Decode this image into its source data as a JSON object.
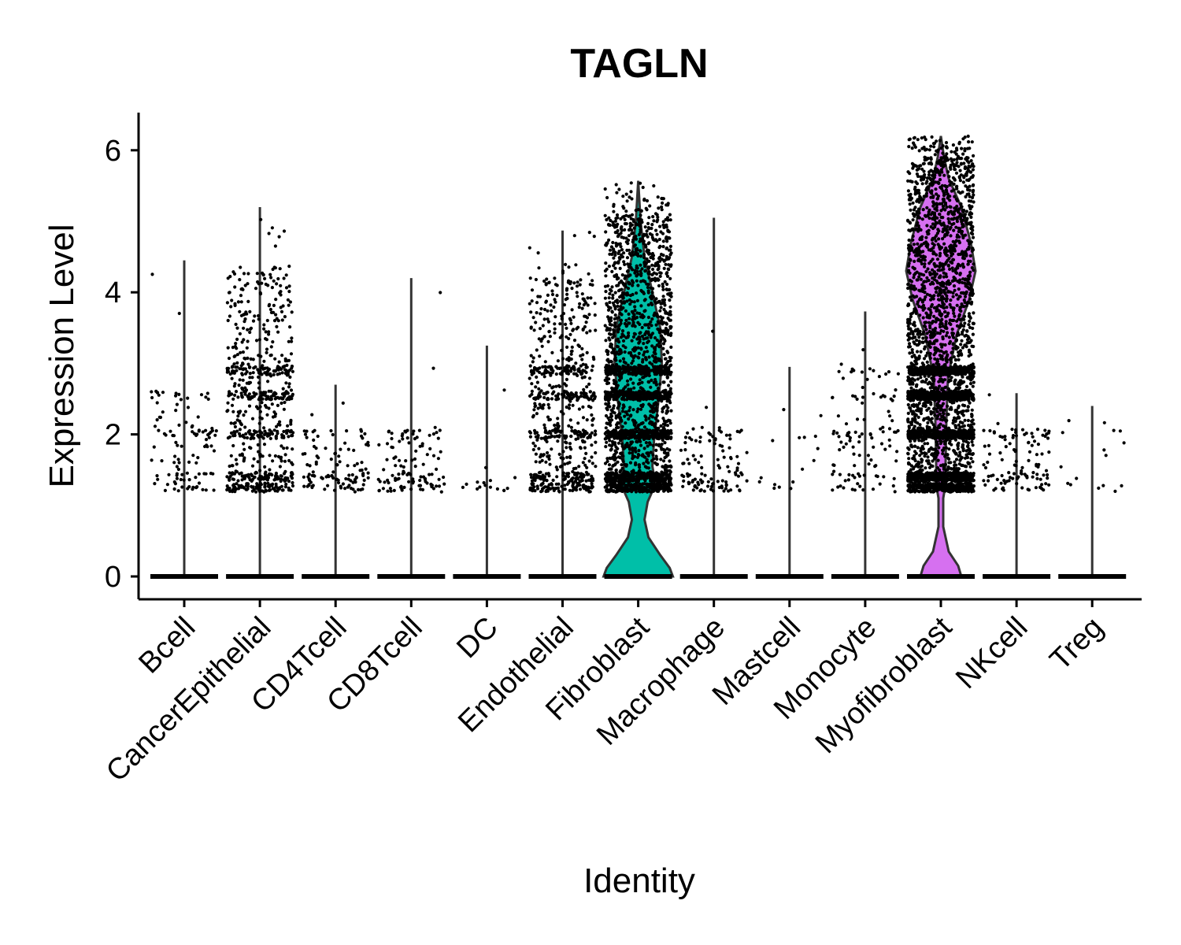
{
  "chart_data": {
    "type": "violin",
    "title": "TAGLN",
    "xlabel": "Identity",
    "ylabel": "Expression Level",
    "ylim": [
      -0.3,
      6.5
    ],
    "yticks": [
      0,
      2,
      4,
      6
    ],
    "grid": false,
    "legend": "none",
    "categories": [
      "Bcell",
      "CancerEpithelial",
      "CD4Tcell",
      "CD8Tcell",
      "DC",
      "Endothelial",
      "Fibroblast",
      "Macrophage",
      "Mastcell",
      "Monocyte",
      "Myofibroblast",
      "NKcell",
      "Treg"
    ],
    "series": [
      {
        "values": [
          {
            "min": 0,
            "max": 4.45,
            "bulk_low": 1.2,
            "bulk_high": 2.6,
            "point_density": "sparse"
          },
          {
            "min": 0,
            "max": 5.2,
            "bulk_low": 1.2,
            "bulk_high": 4.3,
            "point_density": "medium"
          },
          {
            "min": 0,
            "max": 2.7,
            "bulk_low": 1.2,
            "bulk_high": 2.1,
            "point_density": "sparse"
          },
          {
            "min": 0,
            "max": 4.2,
            "bulk_low": 1.2,
            "bulk_high": 2.1,
            "point_density": "sparse"
          },
          {
            "min": 0,
            "max": 3.25,
            "bulk_low": 1.2,
            "bulk_high": 1.4,
            "point_density": "very-sparse"
          },
          {
            "min": 0,
            "max": 4.87,
            "bulk_low": 1.2,
            "bulk_high": 4.2,
            "point_density": "medium"
          },
          {
            "min": 0,
            "max": 5.57,
            "bulk_low": 1.2,
            "bulk_high": 5.1,
            "point_density": "dense",
            "fill": "#00BFA8"
          },
          {
            "min": 0,
            "max": 5.05,
            "bulk_low": 1.2,
            "bulk_high": 2.1,
            "point_density": "sparse"
          },
          {
            "min": 0,
            "max": 2.95,
            "bulk_low": 1.2,
            "bulk_high": 2.0,
            "point_density": "very-sparse"
          },
          {
            "min": 0,
            "max": 3.73,
            "bulk_low": 1.4,
            "bulk_high": 2.9,
            "point_density": "sparse"
          },
          {
            "min": 0,
            "max": 6.2,
            "bulk_low": 1.2,
            "bulk_high": 5.9,
            "point_density": "very-dense",
            "fill": "#D670F0"
          },
          {
            "min": 0,
            "max": 2.58,
            "bulk_low": 1.2,
            "bulk_high": 2.1,
            "point_density": "sparse"
          },
          {
            "min": 0,
            "max": 2.4,
            "bulk_low": 1.2,
            "bulk_high": 2.1,
            "point_density": "very-sparse"
          }
        ]
      }
    ],
    "colors": {
      "fibroblast_fill": "#00BFA8",
      "myofibroblast_fill": "#D670F0",
      "outline": "#333333",
      "points": "#000000"
    }
  }
}
